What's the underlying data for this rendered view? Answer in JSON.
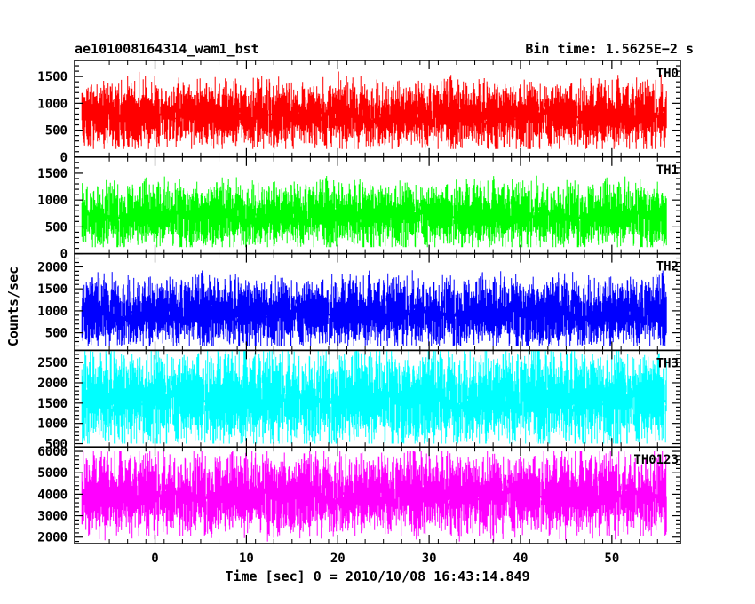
{
  "header": {
    "left_title": "ae101008164314_wam1_bst",
    "right_title": "Bin time: 1.5625E−2 s"
  },
  "chart_data": {
    "type": "line",
    "title": "ae101008164314_wam1_bst",
    "subtitle": "Bin time: 1.5625E−2 s",
    "xlabel": "Time [sec] 0 = 2010/10/08 16:43:14.849",
    "ylabel": "Counts/sec",
    "xlim": [
      -8.8,
      57.5
    ],
    "x_ticks": [
      0,
      10,
      20,
      30,
      40,
      50
    ],
    "x_range_data": [
      -8,
      56
    ],
    "grid": false,
    "legend": "none",
    "panels": [
      {
        "name": "TH0",
        "color": "#ff0000",
        "ylim": [
          0,
          1800
        ],
        "y_ticks": [
          0,
          500,
          1000,
          1500
        ],
        "min": 150,
        "max": 1750,
        "mean": 780,
        "halfwidth": 330
      },
      {
        "name": "TH1",
        "color": "#00ff00",
        "ylim": [
          0,
          1800
        ],
        "y_ticks": [
          0,
          500,
          1000,
          1500
        ],
        "min": 120,
        "max": 1800,
        "mean": 720,
        "halfwidth": 320
      },
      {
        "name": "TH2",
        "color": "#0000ff",
        "ylim": [
          100,
          2300
        ],
        "y_ticks": [
          500,
          1000,
          1500,
          2000
        ],
        "min": 200,
        "max": 2200,
        "mean": 960,
        "halfwidth": 420
      },
      {
        "name": "TH3",
        "color": "#00ffff",
        "ylim": [
          420,
          2800
        ],
        "y_ticks": [
          500,
          1000,
          1500,
          2000,
          2500
        ],
        "min": 500,
        "max": 2800,
        "mean": 1620,
        "halfwidth": 620
      },
      {
        "name": "TH0123",
        "color": "#ff00ff",
        "ylim": [
          1700,
          6200
        ],
        "y_ticks": [
          2000,
          3000,
          4000,
          5000,
          6000
        ],
        "min": 1800,
        "max": 6000,
        "mean": 4000,
        "halfwidth": 1000
      }
    ]
  }
}
